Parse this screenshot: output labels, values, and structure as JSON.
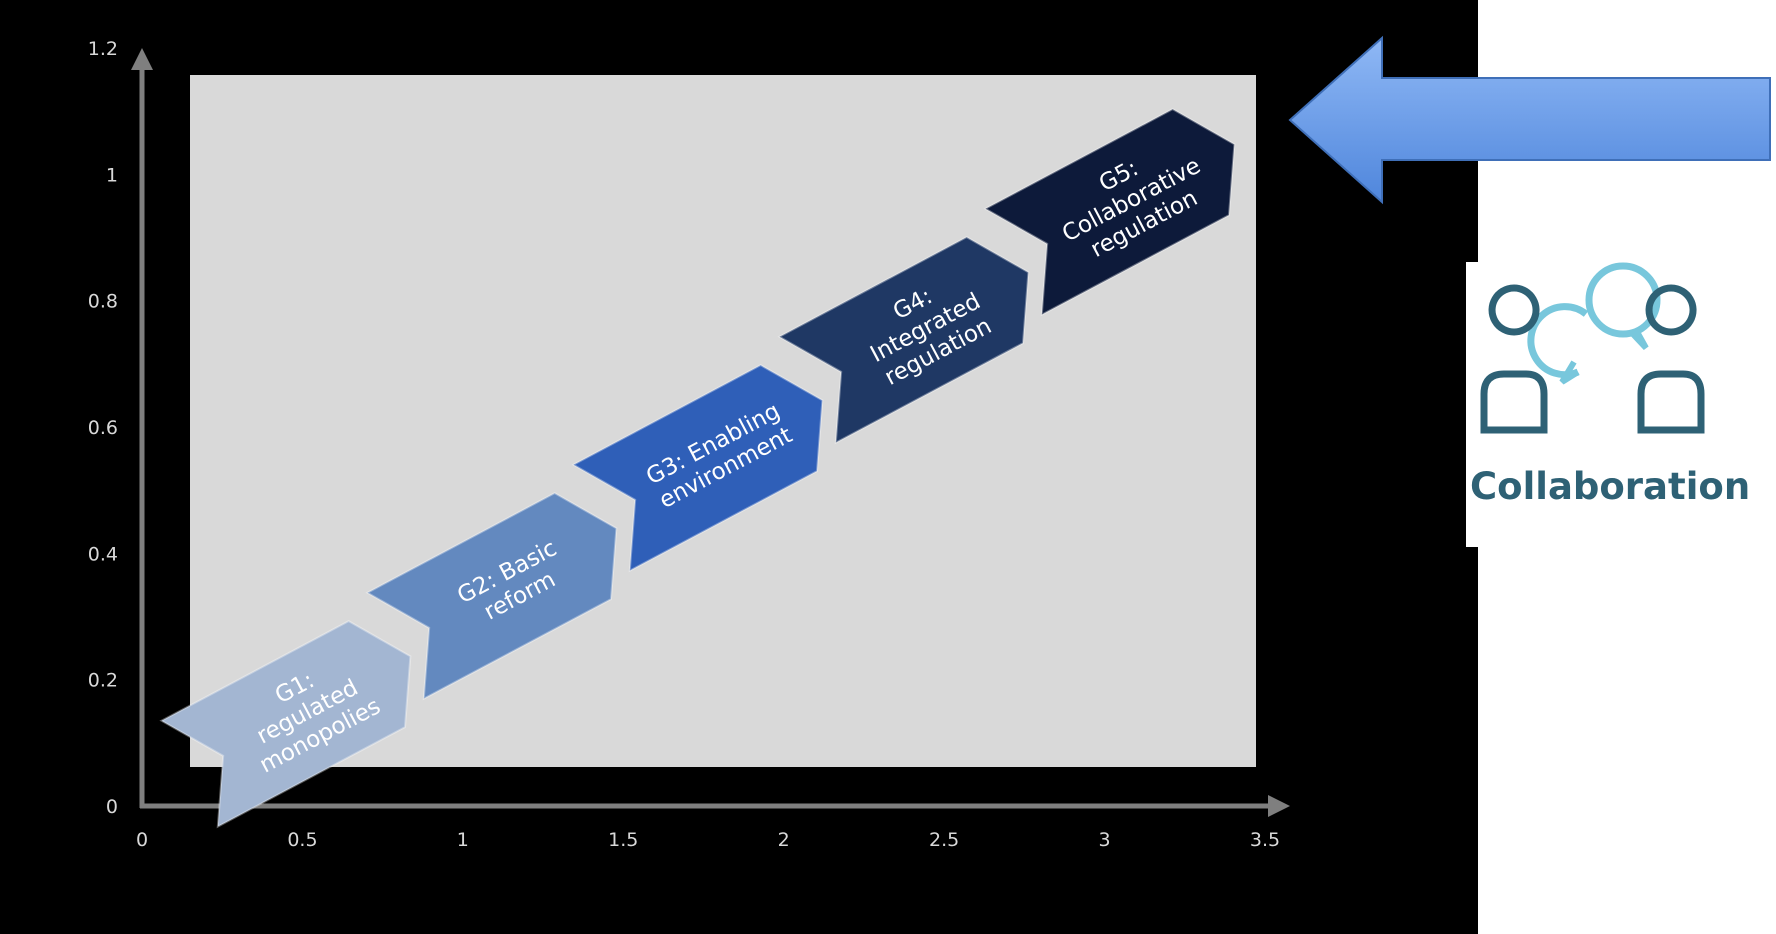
{
  "chart_data": {
    "type": "diagram",
    "x_ticks": [
      "0",
      "0.5",
      "1",
      "1.5",
      "2",
      "2.5",
      "3",
      "3.5"
    ],
    "y_ticks": [
      "0",
      "0.2",
      "0.4",
      "0.6",
      "0.8",
      "1",
      "1.2"
    ],
    "xlim": [
      0,
      3.5
    ],
    "ylim": [
      0,
      1.2
    ],
    "stages": [
      {
        "lines": [
          "G1:",
          "regulated",
          "monopolies"
        ],
        "color": "#a3b6d2"
      },
      {
        "lines": [
          "G2: Basic",
          "reform"
        ],
        "color": "#6389bf"
      },
      {
        "lines": [
          "G3: Enabling",
          "environment"
        ],
        "color": "#2f5fb8"
      },
      {
        "lines": [
          "G4:",
          "Integrated",
          "regulation"
        ],
        "color": "#1f3864"
      },
      {
        "lines": [
          "G5:",
          "Collaborative",
          "regulation"
        ],
        "color": "#0d1a3a"
      }
    ]
  },
  "collaboration": {
    "label": "Collaboration",
    "icon": "collaboration-icon",
    "color": "#2e6175"
  },
  "pointer_arrow_color": "#6d9ee8"
}
